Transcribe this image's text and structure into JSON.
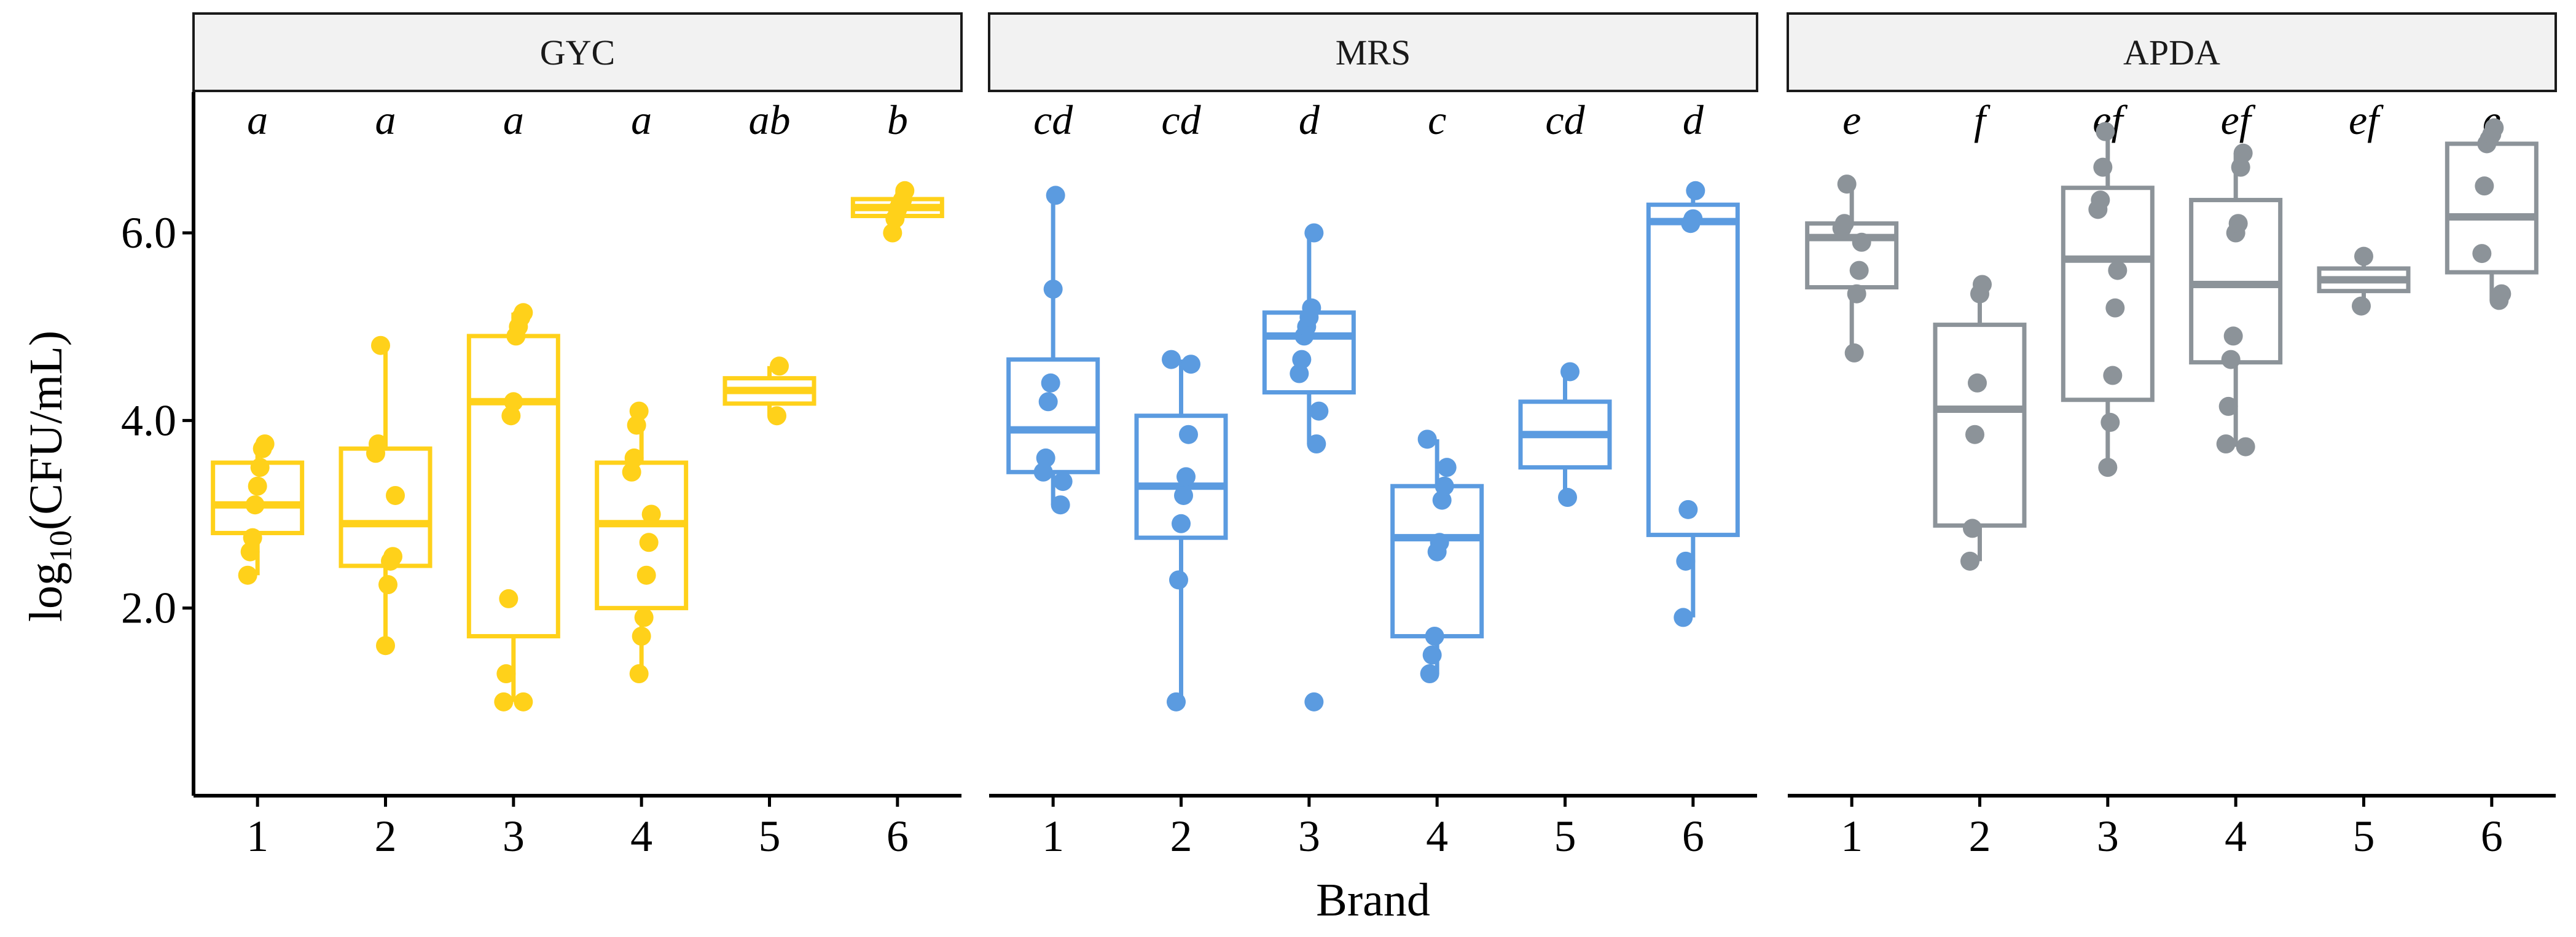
{
  "chart_data": {
    "type": "boxplot",
    "xlabel": "Brand",
    "ylabel": {
      "prefix": "log",
      "subscript": "10",
      "suffix": "(CFU/mL)"
    },
    "ylim": [
      0,
      7.5
    ],
    "yticks": [
      {
        "value": 2,
        "label": "2.0"
      },
      {
        "value": 4,
        "label": "4.0"
      },
      {
        "value": 6,
        "label": "6.0"
      }
    ],
    "categories": [
      "1",
      "2",
      "3",
      "4",
      "5",
      "6"
    ],
    "panels": [
      {
        "name": "GYC",
        "color": "#FFD11A",
        "groups": [
          {
            "brand": "1",
            "letter": "a",
            "q1": 2.8,
            "median": 3.1,
            "q3": 3.55,
            "whisker_low": 2.35,
            "whisker_high": 3.75,
            "points": [
              2.35,
              2.6,
              2.75,
              3.1,
              3.3,
              3.5,
              3.7,
              3.75
            ]
          },
          {
            "brand": "2",
            "letter": "a",
            "q1": 2.45,
            "median": 2.9,
            "q3": 3.7,
            "whisker_low": 1.6,
            "whisker_high": 4.8,
            "points": [
              1.6,
              2.25,
              2.5,
              2.55,
              3.2,
              3.65,
              3.75,
              4.8
            ]
          },
          {
            "brand": "3",
            "letter": "a",
            "q1": 1.7,
            "median": 4.2,
            "q3": 4.9,
            "whisker_low": 1.0,
            "whisker_high": 5.15,
            "points": [
              1.0,
              1.0,
              1.3,
              2.1,
              4.05,
              4.2,
              4.9,
              5.0,
              5.1,
              5.15
            ]
          },
          {
            "brand": "4",
            "letter": "a",
            "q1": 2.0,
            "median": 2.9,
            "q3": 3.55,
            "whisker_low": 1.3,
            "whisker_high": 4.1,
            "points": [
              1.3,
              1.7,
              1.9,
              2.35,
              2.7,
              3.0,
              3.45,
              3.6,
              3.95,
              4.1
            ]
          },
          {
            "brand": "5",
            "letter": "ab",
            "q1": 4.18,
            "median": 4.32,
            "q3": 4.45,
            "whisker_low": 4.05,
            "whisker_high": 4.58,
            "points": [
              4.05,
              4.58
            ]
          },
          {
            "brand": "6",
            "letter": "b",
            "q1": 6.18,
            "median": 6.27,
            "q3": 6.36,
            "whisker_low": 6.0,
            "whisker_high": 6.45,
            "points": [
              6.0,
              6.15,
              6.25,
              6.3,
              6.35,
              6.45
            ]
          }
        ]
      },
      {
        "name": "MRS",
        "color": "#5B9BE0",
        "groups": [
          {
            "brand": "1",
            "letter": "cd",
            "q1": 3.45,
            "median": 3.9,
            "q3": 4.65,
            "whisker_low": 3.1,
            "whisker_high": 6.4,
            "points": [
              3.1,
              3.35,
              3.45,
              3.6,
              4.2,
              4.4,
              5.4,
              6.4
            ]
          },
          {
            "brand": "2",
            "letter": "cd",
            "q1": 2.75,
            "median": 3.3,
            "q3": 4.05,
            "whisker_low": 1.0,
            "whisker_high": 4.65,
            "points": [
              1.0,
              2.3,
              2.9,
              3.2,
              3.4,
              3.85,
              4.6,
              4.65
            ]
          },
          {
            "brand": "3",
            "letter": "d",
            "q1": 4.3,
            "median": 4.9,
            "q3": 5.15,
            "whisker_low": 3.75,
            "whisker_high": 6.0,
            "points": [
              1.0,
              3.75,
              4.1,
              4.5,
              4.65,
              4.9,
              5.0,
              5.1,
              5.2,
              6.0
            ]
          },
          {
            "brand": "4",
            "letter": "c",
            "q1": 1.7,
            "median": 2.75,
            "q3": 3.3,
            "whisker_low": 1.3,
            "whisker_high": 3.8,
            "points": [
              1.3,
              1.5,
              1.7,
              2.6,
              2.7,
              3.15,
              3.3,
              3.5,
              3.8
            ]
          },
          {
            "brand": "5",
            "letter": "cd",
            "q1": 3.5,
            "median": 3.85,
            "q3": 4.2,
            "whisker_low": 3.18,
            "whisker_high": 4.52,
            "points": [
              3.18,
              4.52
            ]
          },
          {
            "brand": "6",
            "letter": "d",
            "q1": 2.78,
            "median": 6.12,
            "q3": 6.3,
            "whisker_low": 1.9,
            "whisker_high": 6.45,
            "points": [
              1.9,
              2.5,
              3.05,
              6.1,
              6.15,
              6.45
            ]
          }
        ]
      },
      {
        "name": "APDA",
        "color": "#8C9399",
        "groups": [
          {
            "brand": "1",
            "letter": "e",
            "q1": 5.42,
            "median": 5.95,
            "q3": 6.1,
            "whisker_low": 4.72,
            "whisker_high": 6.52,
            "points": [
              4.72,
              5.35,
              5.6,
              5.9,
              6.05,
              6.1,
              6.52
            ]
          },
          {
            "brand": "2",
            "letter": "f",
            "q1": 2.88,
            "median": 4.12,
            "q3": 5.02,
            "whisker_low": 2.5,
            "whisker_high": 5.45,
            "points": [
              2.5,
              2.85,
              3.85,
              4.4,
              5.35,
              5.45
            ]
          },
          {
            "brand": "3",
            "letter": "ef",
            "q1": 4.22,
            "median": 5.72,
            "q3": 6.48,
            "whisker_low": 3.5,
            "whisker_high": 7.08,
            "points": [
              3.5,
              3.98,
              4.48,
              5.2,
              5.6,
              6.25,
              6.35,
              6.7,
              7.08
            ]
          },
          {
            "brand": "4",
            "letter": "ef",
            "q1": 4.62,
            "median": 5.45,
            "q3": 6.35,
            "whisker_low": 3.72,
            "whisker_high": 6.85,
            "points": [
              3.72,
              3.75,
              4.15,
              4.65,
              4.9,
              6.0,
              6.1,
              6.7,
              6.85
            ]
          },
          {
            "brand": "5",
            "letter": "ef",
            "q1": 5.38,
            "median": 5.5,
            "q3": 5.62,
            "whisker_low": 5.22,
            "whisker_high": 5.75,
            "points": [
              5.22,
              5.75
            ]
          },
          {
            "brand": "6",
            "letter": "e",
            "q1": 5.58,
            "median": 6.17,
            "q3": 6.95,
            "whisker_low": 5.28,
            "whisker_high": 7.12,
            "points": [
              5.28,
              5.35,
              5.78,
              6.5,
              6.95,
              7.0,
              7.05,
              7.12
            ]
          }
        ]
      }
    ]
  }
}
